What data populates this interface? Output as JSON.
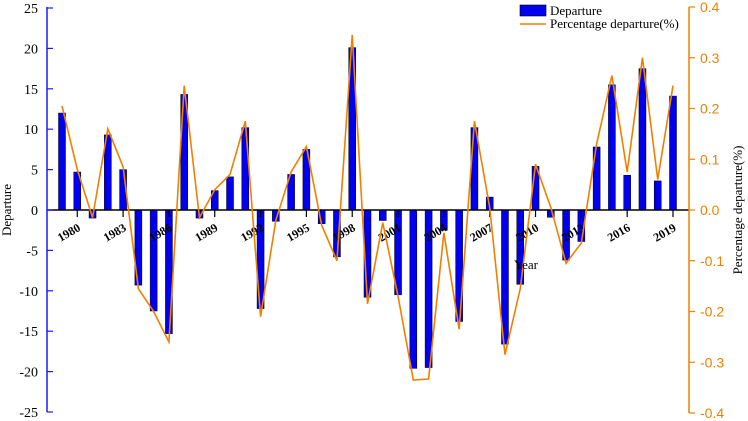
{
  "chart_data": {
    "type": "bar",
    "title": "",
    "xlabel": "Year",
    "ylabel": "Departure",
    "y2label": "Percentage departure(%)",
    "ylim": [
      -25,
      25
    ],
    "y2lim": [
      -0.4,
      0.4
    ],
    "yticks": [
      "25",
      "20",
      "15",
      "10",
      "5",
      "0",
      "-5",
      "-10",
      "-15",
      "-20",
      "-25"
    ],
    "y2ticks": [
      "0.4",
      "0.3",
      "0.2",
      "0.1",
      "0.0",
      "-0.1",
      "-0.2",
      "-0.3",
      "-0.4"
    ],
    "xticks": [
      "1980",
      "1983",
      "1986",
      "1989",
      "1992",
      "1995",
      "1998",
      "2001",
      "2004",
      "2007",
      "2010",
      "2013",
      "2016",
      "2019"
    ],
    "legend_position": "top-right",
    "x": [
      1979,
      1980,
      1981,
      1982,
      1983,
      1984,
      1985,
      1986,
      1987,
      1988,
      1989,
      1990,
      1991,
      1992,
      1993,
      1994,
      1995,
      1996,
      1997,
      1998,
      1999,
      2000,
      2001,
      2002,
      2003,
      2004,
      2005,
      2006,
      2007,
      2008,
      2009,
      2010,
      2011,
      2012,
      2013,
      2014,
      2015,
      2016,
      2017,
      2018,
      2019
    ],
    "series": [
      {
        "name": "Departure",
        "type": "bar",
        "axis": "left",
        "color": "#0000ee",
        "values": [
          12,
          4.7,
          -1,
          9.3,
          5,
          -9.3,
          -12.5,
          -15.3,
          14.3,
          -1,
          2.4,
          4.1,
          10.2,
          -12.2,
          -1.4,
          4.4,
          7.5,
          -1.7,
          -5.8,
          20.1,
          -10.8,
          -1.3,
          -10.5,
          -19.6,
          -19.5,
          -2.5,
          -13.8,
          10.2,
          1.6,
          -16.6,
          -9.2,
          5.4,
          -0.9,
          -6.2,
          -3.9,
          7.8,
          15.5,
          4.3,
          17.5,
          3.6,
          14.1
        ]
      },
      {
        "name": "Percentage departure(%)",
        "type": "line",
        "axis": "right",
        "color": "#f08000",
        "values": [
          0.205,
          0.08,
          -0.015,
          0.16,
          0.085,
          -0.155,
          -0.2,
          -0.26,
          0.245,
          -0.015,
          0.04,
          0.07,
          0.175,
          -0.21,
          -0.02,
          0.075,
          0.125,
          -0.03,
          -0.1,
          0.345,
          -0.185,
          -0.025,
          -0.17,
          -0.335,
          -0.333,
          -0.045,
          -0.235,
          0.175,
          0.005,
          -0.285,
          -0.155,
          0.09,
          0.005,
          -0.105,
          -0.065,
          0.13,
          0.265,
          0.075,
          0.3,
          0.06,
          0.245
        ]
      }
    ]
  }
}
